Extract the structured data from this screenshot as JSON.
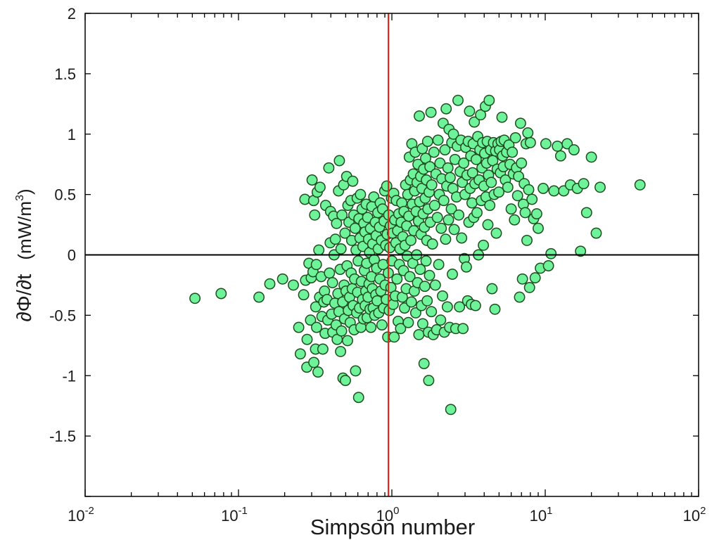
{
  "chart_data": {
    "type": "scatter",
    "title": "",
    "xlabel": "Simpson number",
    "ylabel": {
      "main": "∂Φ/∂t",
      "units_pre": "(mW/m",
      "units_sup": "3",
      "units_post": ")"
    },
    "xscale": "log",
    "xlim": [
      0.01,
      100
    ],
    "ylim": [
      -2,
      2
    ],
    "x_tick_labels": [
      {
        "base": "10",
        "exp": "-2"
      },
      {
        "base": "10",
        "exp": "-1"
      },
      {
        "base": "10",
        "exp": "0"
      },
      {
        "base": "10",
        "exp": "1"
      },
      {
        "base": "10",
        "exp": "2"
      }
    ],
    "y_ticks": [
      -1.5,
      -1,
      -0.5,
      0,
      0.5,
      1,
      1.5,
      2
    ],
    "y_tick_labels": [
      "-1.5",
      "-1",
      "-0.5",
      "0",
      "0.5",
      "1",
      "1.5",
      "2"
    ],
    "reference_lines": [
      {
        "orientation": "vertical",
        "x": 0.95,
        "color": "#e0251b"
      },
      {
        "orientation": "horizontal",
        "y": 0,
        "color": "#000000"
      }
    ],
    "grid": false,
    "legend": "none",
    "marker_color": "#6ef29a",
    "marker_edge": "#1e4d1e",
    "points": [
      [
        0.052,
        -0.36
      ],
      [
        0.077,
        -0.32
      ],
      [
        0.136,
        -0.35
      ],
      [
        0.16,
        -0.24
      ],
      [
        0.194,
        -0.2
      ],
      [
        0.228,
        -0.25
      ],
      [
        0.247,
        -0.6
      ],
      [
        0.253,
        -0.82
      ],
      [
        0.266,
        -0.33
      ],
      [
        0.271,
        0.46
      ],
      [
        0.274,
        -0.21
      ],
      [
        0.279,
        -0.93
      ],
      [
        0.28,
        -0.7
      ],
      [
        0.288,
        -0.07
      ],
      [
        0.295,
        -0.54
      ],
      [
        0.298,
        -0.19
      ],
      [
        0.302,
        0.62
      ],
      [
        0.306,
        -0.14
      ],
      [
        0.309,
        0.45
      ],
      [
        0.31,
        -0.89
      ],
      [
        0.314,
        0.33
      ],
      [
        0.318,
        -0.78
      ],
      [
        0.319,
        -0.43
      ],
      [
        0.322,
        -0.08
      ],
      [
        0.323,
        -0.6
      ],
      [
        0.326,
        0.52
      ],
      [
        0.33,
        -0.97
      ],
      [
        0.334,
        0.04
      ],
      [
        0.338,
        -0.35
      ],
      [
        0.34,
        0.56
      ],
      [
        0.346,
        -0.18
      ],
      [
        0.35,
        -0.51
      ],
      [
        0.355,
        -0.78
      ],
      [
        0.36,
        -0.39
      ],
      [
        0.364,
        -0.3
      ],
      [
        0.367,
        -0.65
      ],
      [
        0.37,
        0.41
      ],
      [
        0.378,
        -0.37
      ],
      [
        0.382,
        -0.54
      ],
      [
        0.388,
        0.72
      ],
      [
        0.392,
        -0.15
      ],
      [
        0.396,
        0.1
      ],
      [
        0.398,
        0.36
      ],
      [
        0.405,
        -0.49
      ],
      [
        0.41,
        -0.23
      ],
      [
        0.412,
        -0.64
      ],
      [
        0.417,
        0.32
      ],
      [
        0.42,
        0.0
      ],
      [
        0.425,
        -0.4
      ],
      [
        0.428,
        0.13
      ],
      [
        0.433,
        -0.58
      ],
      [
        0.436,
        0.26
      ],
      [
        0.44,
        -0.7
      ],
      [
        0.445,
        -0.32
      ],
      [
        0.449,
        0.53
      ],
      [
        0.452,
        -0.47
      ],
      [
        0.455,
        0.78
      ],
      [
        0.46,
        -0.12
      ],
      [
        0.463,
        -0.8
      ],
      [
        0.466,
        0.05
      ],
      [
        0.47,
        -0.63
      ],
      [
        0.473,
        0.33
      ],
      [
        0.478,
        -0.39
      ],
      [
        0.48,
        -1.02
      ],
      [
        0.485,
        0.58
      ],
      [
        0.488,
        -0.25
      ],
      [
        0.491,
        -0.53
      ],
      [
        0.495,
        0.18
      ],
      [
        0.498,
        -1.04
      ],
      [
        0.502,
        -0.3
      ],
      [
        0.507,
        0.65
      ],
      [
        0.51,
        -0.09
      ],
      [
        0.514,
        -0.71
      ],
      [
        0.517,
        0.41
      ],
      [
        0.52,
        -0.46
      ],
      [
        0.525,
        0.27
      ],
      [
        0.53,
        -0.35
      ],
      [
        0.535,
        -0.56
      ],
      [
        0.54,
        0.45
      ],
      [
        0.543,
        -0.15
      ],
      [
        0.547,
        0.12
      ],
      [
        0.552,
        -0.28
      ],
      [
        0.556,
        0.61
      ],
      [
        0.56,
        -0.42
      ],
      [
        0.565,
        0.33
      ],
      [
        0.568,
        -0.62
      ],
      [
        0.572,
        -0.2
      ],
      [
        0.576,
        0.22
      ],
      [
        0.58,
        -0.96
      ],
      [
        0.584,
        0.04
      ],
      [
        0.59,
        -0.48
      ],
      [
        0.594,
        0.47
      ],
      [
        0.598,
        -0.31
      ],
      [
        0.603,
        -0.05
      ],
      [
        0.607,
        -1.18
      ],
      [
        0.61,
        0.3
      ],
      [
        0.615,
        -0.44
      ],
      [
        0.62,
        0.14
      ],
      [
        0.624,
        0.5
      ],
      [
        0.628,
        -0.6
      ],
      [
        0.633,
        -0.22
      ],
      [
        0.64,
        0.38
      ],
      [
        0.644,
        -0.37
      ],
      [
        0.648,
        0.07
      ],
      [
        0.652,
        -0.53
      ],
      [
        0.657,
        0.26
      ],
      [
        0.662,
        -0.13
      ],
      [
        0.667,
        0.19
      ],
      [
        0.67,
        -0.42
      ],
      [
        0.676,
        -0.3
      ],
      [
        0.68,
        0.42
      ],
      [
        0.685,
        -0.07
      ],
      [
        0.69,
        -0.52
      ],
      [
        0.695,
        0.31
      ],
      [
        0.7,
        -0.35
      ],
      [
        0.705,
        0.13
      ],
      [
        0.71,
        -0.24
      ],
      [
        0.716,
        0.02
      ],
      [
        0.72,
        -0.45
      ],
      [
        0.725,
        0.22
      ],
      [
        0.73,
        -0.6
      ],
      [
        0.736,
        -0.18
      ],
      [
        0.74,
        0.4
      ],
      [
        0.746,
        -0.28
      ],
      [
        0.75,
        0.09
      ],
      [
        0.756,
        -0.44
      ],
      [
        0.762,
        0.48
      ],
      [
        0.768,
        -0.04
      ],
      [
        0.774,
        -0.5
      ],
      [
        0.78,
        0.27
      ],
      [
        0.786,
        -0.33
      ],
      [
        0.79,
        0.16
      ],
      [
        0.796,
        -0.11
      ],
      [
        0.802,
        -0.38
      ],
      [
        0.81,
        0.35
      ],
      [
        0.816,
        0.05
      ],
      [
        0.822,
        -0.48
      ],
      [
        0.83,
        0.23
      ],
      [
        0.836,
        -0.2
      ],
      [
        0.84,
        0.43
      ],
      [
        0.848,
        -0.3
      ],
      [
        0.855,
        0.12
      ],
      [
        0.862,
        -0.58
      ],
      [
        0.87,
        0.38
      ],
      [
        0.877,
        -0.08
      ],
      [
        0.884,
        -0.44
      ],
      [
        0.89,
        0.28
      ],
      [
        0.898,
        0.53
      ],
      [
        0.905,
        -0.25
      ],
      [
        0.912,
        0.08
      ],
      [
        0.92,
        -0.37
      ],
      [
        0.926,
        0.57
      ],
      [
        0.932,
        0.17
      ],
      [
        0.94,
        -0.68
      ],
      [
        0.948,
        -0.15
      ],
      [
        0.955,
        0.33
      ],
      [
        0.962,
        -0.46
      ],
      [
        0.97,
        0.06
      ],
      [
        0.978,
        0.24
      ],
      [
        0.986,
        -0.27
      ],
      [
        0.994,
        0.47
      ],
      [
        1.002,
        -0.05
      ],
      [
        1.01,
        0.18
      ],
      [
        1.02,
        -0.41
      ],
      [
        1.028,
        0.51
      ],
      [
        1.036,
        -0.68
      ],
      [
        1.045,
        0.29
      ],
      [
        1.053,
        -0.34
      ],
      [
        1.062,
        0.1
      ],
      [
        1.07,
        0.45
      ],
      [
        1.08,
        -0.2
      ],
      [
        1.09,
        0.2
      ],
      [
        1.1,
        -0.55
      ],
      [
        1.11,
        0.34
      ],
      [
        1.12,
        -0.08
      ],
      [
        1.13,
        0.05
      ],
      [
        1.14,
        -0.61
      ],
      [
        1.15,
        0.27
      ],
      [
        1.16,
        0.43
      ],
      [
        1.17,
        -0.35
      ],
      [
        1.18,
        0.15
      ],
      [
        1.19,
        -0.13
      ],
      [
        1.2,
        0.36
      ],
      [
        1.21,
        -0.44
      ],
      [
        1.22,
        0.08
      ],
      [
        1.23,
        0.58
      ],
      [
        1.24,
        -0.28
      ],
      [
        1.25,
        0.24
      ],
      [
        1.26,
        -0.01
      ],
      [
        1.27,
        0.5
      ],
      [
        1.28,
        -0.56
      ],
      [
        1.29,
        0.32
      ],
      [
        1.3,
        0.81
      ],
      [
        1.31,
        -0.18
      ],
      [
        1.32,
        0.62
      ],
      [
        1.33,
        0.12
      ],
      [
        1.34,
        -0.39
      ],
      [
        1.35,
        0.92
      ],
      [
        1.36,
        0.42
      ],
      [
        1.37,
        -0.07
      ],
      [
        1.38,
        0.67
      ],
      [
        1.39,
        0.2
      ],
      [
        1.4,
        -0.3
      ],
      [
        1.41,
        0.53
      ],
      [
        1.42,
        0.85
      ],
      [
        1.43,
        -0.48
      ],
      [
        1.44,
        0.36
      ],
      [
        1.45,
        0.0
      ],
      [
        1.46,
        0.6
      ],
      [
        1.47,
        -0.23
      ],
      [
        1.48,
        0.75
      ],
      [
        1.49,
        0.28
      ],
      [
        1.5,
        -0.66
      ],
      [
        1.51,
        1.15
      ],
      [
        1.52,
        0.44
      ],
      [
        1.53,
        -0.12
      ],
      [
        1.54,
        0.65
      ],
      [
        1.55,
        0.17
      ],
      [
        1.56,
        -0.42
      ],
      [
        1.57,
        0.55
      ],
      [
        1.58,
        0.88
      ],
      [
        1.59,
        -0.57
      ],
      [
        1.6,
        0.34
      ],
      [
        1.61,
        0.71
      ],
      [
        1.62,
        -0.9
      ],
      [
        1.63,
        0.23
      ],
      [
        1.64,
        -0.26
      ],
      [
        1.65,
        0.47
      ],
      [
        1.66,
        0.8
      ],
      [
        1.67,
        -0.05
      ],
      [
        1.68,
        0.62
      ],
      [
        1.69,
        0.12
      ],
      [
        1.7,
        -0.38
      ],
      [
        1.71,
        0.94
      ],
      [
        1.72,
        0.38
      ],
      [
        1.73,
        -0.64
      ],
      [
        1.74,
        -1.04
      ],
      [
        1.75,
        0.52
      ],
      [
        1.76,
        -0.17
      ],
      [
        1.77,
        0.73
      ],
      [
        1.78,
        0.27
      ],
      [
        1.8,
        1.18
      ],
      [
        1.81,
        -0.47
      ],
      [
        1.82,
        0.58
      ],
      [
        1.84,
        0.09
      ],
      [
        1.86,
        -0.66
      ],
      [
        1.88,
        0.85
      ],
      [
        1.9,
        0.41
      ],
      [
        1.92,
        -0.25
      ],
      [
        1.94,
        0.67
      ],
      [
        1.96,
        -0.62
      ],
      [
        1.98,
        0.31
      ],
      [
        2.0,
        0.95
      ],
      [
        2.02,
        -0.08
      ],
      [
        2.04,
        0.5
      ],
      [
        2.06,
        0.76
      ],
      [
        2.08,
        -0.54
      ],
      [
        2.1,
        0.22
      ],
      [
        2.12,
        0.63
      ],
      [
        2.14,
        -0.34
      ],
      [
        2.16,
        1.09
      ],
      [
        2.18,
        0.45
      ],
      [
        2.2,
        -0.64
      ],
      [
        2.22,
        0.87
      ],
      [
        2.24,
        0.13
      ],
      [
        2.26,
        1.21
      ],
      [
        2.28,
        0.57
      ],
      [
        2.3,
        -0.43
      ],
      [
        2.32,
        0.72
      ],
      [
        2.34,
        0.29
      ],
      [
        2.36,
        1.04
      ],
      [
        2.38,
        -0.6
      ],
      [
        2.4,
        0.64
      ],
      [
        2.42,
        -1.28
      ],
      [
        2.44,
        0.38
      ],
      [
        2.46,
        0.93
      ],
      [
        2.48,
        -0.16
      ],
      [
        2.5,
        0.55
      ],
      [
        2.52,
        1.0
      ],
      [
        2.55,
        0.21
      ],
      [
        2.58,
        0.79
      ],
      [
        2.61,
        -0.61
      ],
      [
        2.64,
        0.48
      ],
      [
        2.67,
        0.9
      ],
      [
        2.7,
        1.28
      ],
      [
        2.73,
        0.33
      ],
      [
        2.76,
        -0.43
      ],
      [
        2.79,
        0.69
      ],
      [
        2.82,
        0.95
      ],
      [
        2.85,
        0.14
      ],
      [
        2.88,
        0.6
      ],
      [
        2.91,
        -0.61
      ],
      [
        2.94,
        0.76
      ],
      [
        2.97,
        -0.03
      ],
      [
        3.0,
        0.5
      ],
      [
        3.03,
        0.89
      ],
      [
        3.06,
        -0.1
      ],
      [
        3.09,
        0.66
      ],
      [
        3.12,
        -0.38
      ],
      [
        3.15,
        0.94
      ],
      [
        3.18,
        0.27
      ],
      [
        3.21,
        1.19
      ],
      [
        3.24,
        0.55
      ],
      [
        3.27,
        0.82
      ],
      [
        3.3,
        -0.41
      ],
      [
        3.33,
        0.43
      ],
      [
        3.36,
        0.68
      ],
      [
        3.39,
        0.92
      ],
      [
        3.42,
        0.31
      ],
      [
        3.45,
        1.1
      ],
      [
        3.48,
        0.59
      ],
      [
        3.51,
        -0.42
      ],
      [
        3.55,
        0.79
      ],
      [
        3.59,
        0.35
      ],
      [
        3.63,
        0.98
      ],
      [
        3.67,
        0.0
      ],
      [
        3.71,
        0.62
      ],
      [
        3.75,
        0.87
      ],
      [
        3.79,
        1.16
      ],
      [
        3.83,
        0.45
      ],
      [
        3.87,
        0.72
      ],
      [
        3.91,
        0.93
      ],
      [
        3.95,
        0.08
      ],
      [
        3.99,
        0.57
      ],
      [
        4.03,
        0.84
      ],
      [
        4.07,
        1.23
      ],
      [
        4.11,
        0.48
      ],
      [
        4.15,
        0.76
      ],
      [
        4.19,
        0.94
      ],
      [
        4.23,
        0.25
      ],
      [
        4.27,
        0.66
      ],
      [
        4.31,
        1.28
      ],
      [
        4.35,
        0.41
      ],
      [
        4.4,
        0.87
      ],
      [
        4.45,
        0.6
      ],
      [
        4.5,
        -0.28
      ],
      [
        4.55,
        0.78
      ],
      [
        4.6,
        0.93
      ],
      [
        4.65,
        0.5
      ],
      [
        4.7,
        -0.45
      ],
      [
        4.75,
        0.86
      ],
      [
        4.8,
        0.18
      ],
      [
        4.86,
        0.71
      ],
      [
        4.92,
        0.92
      ],
      [
        4.98,
        0.52
      ],
      [
        5.04,
        0.87
      ],
      [
        5.1,
        0.68
      ],
      [
        5.16,
        0.94
      ],
      [
        5.22,
        1.14
      ],
      [
        5.28,
        0.82
      ],
      [
        5.34,
        0.73
      ],
      [
        5.4,
        0.95
      ],
      [
        5.5,
        0.62
      ],
      [
        5.6,
        0.85
      ],
      [
        5.7,
        0.56
      ],
      [
        5.8,
        0.91
      ],
      [
        5.9,
        0.75
      ],
      [
        6.0,
        0.38
      ],
      [
        6.1,
        0.85
      ],
      [
        6.2,
        0.67
      ],
      [
        6.3,
        0.29
      ],
      [
        6.4,
        0.97
      ],
      [
        6.5,
        0.72
      ],
      [
        6.6,
        0.49
      ],
      [
        6.7,
        0.65
      ],
      [
        6.8,
        -0.35
      ],
      [
        6.9,
        1.09
      ],
      [
        7.0,
        0.76
      ],
      [
        7.1,
        -0.2
      ],
      [
        7.2,
        0.42
      ],
      [
        7.3,
        0.59
      ],
      [
        7.4,
        0.35
      ],
      [
        7.5,
        0.92
      ],
      [
        7.6,
        0.12
      ],
      [
        7.7,
        1.01
      ],
      [
        7.8,
        0.54
      ],
      [
        7.9,
        -0.27
      ],
      [
        8.0,
        0.93
      ],
      [
        8.2,
        0.46
      ],
      [
        8.4,
        0.3
      ],
      [
        8.6,
        -0.19
      ],
      [
        8.8,
        0.34
      ],
      [
        9.0,
        0.22
      ],
      [
        9.3,
        -0.11
      ],
      [
        9.7,
        0.55
      ],
      [
        10.1,
        0.92
      ],
      [
        10.5,
        -0.09
      ],
      [
        10.9,
        0.01
      ],
      [
        11.4,
        0.53
      ],
      [
        12.0,
        0.9
      ],
      [
        12.6,
        0.82
      ],
      [
        13.2,
        0.53
      ],
      [
        13.9,
        0.92
      ],
      [
        14.6,
        0.58
      ],
      [
        15.4,
        0.87
      ],
      [
        16.2,
        0.55
      ],
      [
        17.0,
        0.03
      ],
      [
        17.8,
        0.59
      ],
      [
        18.6,
        0.35
      ],
      [
        20.0,
        0.81
      ],
      [
        21.5,
        0.18
      ],
      [
        22.8,
        0.56
      ],
      [
        41.5,
        0.58
      ]
    ]
  }
}
